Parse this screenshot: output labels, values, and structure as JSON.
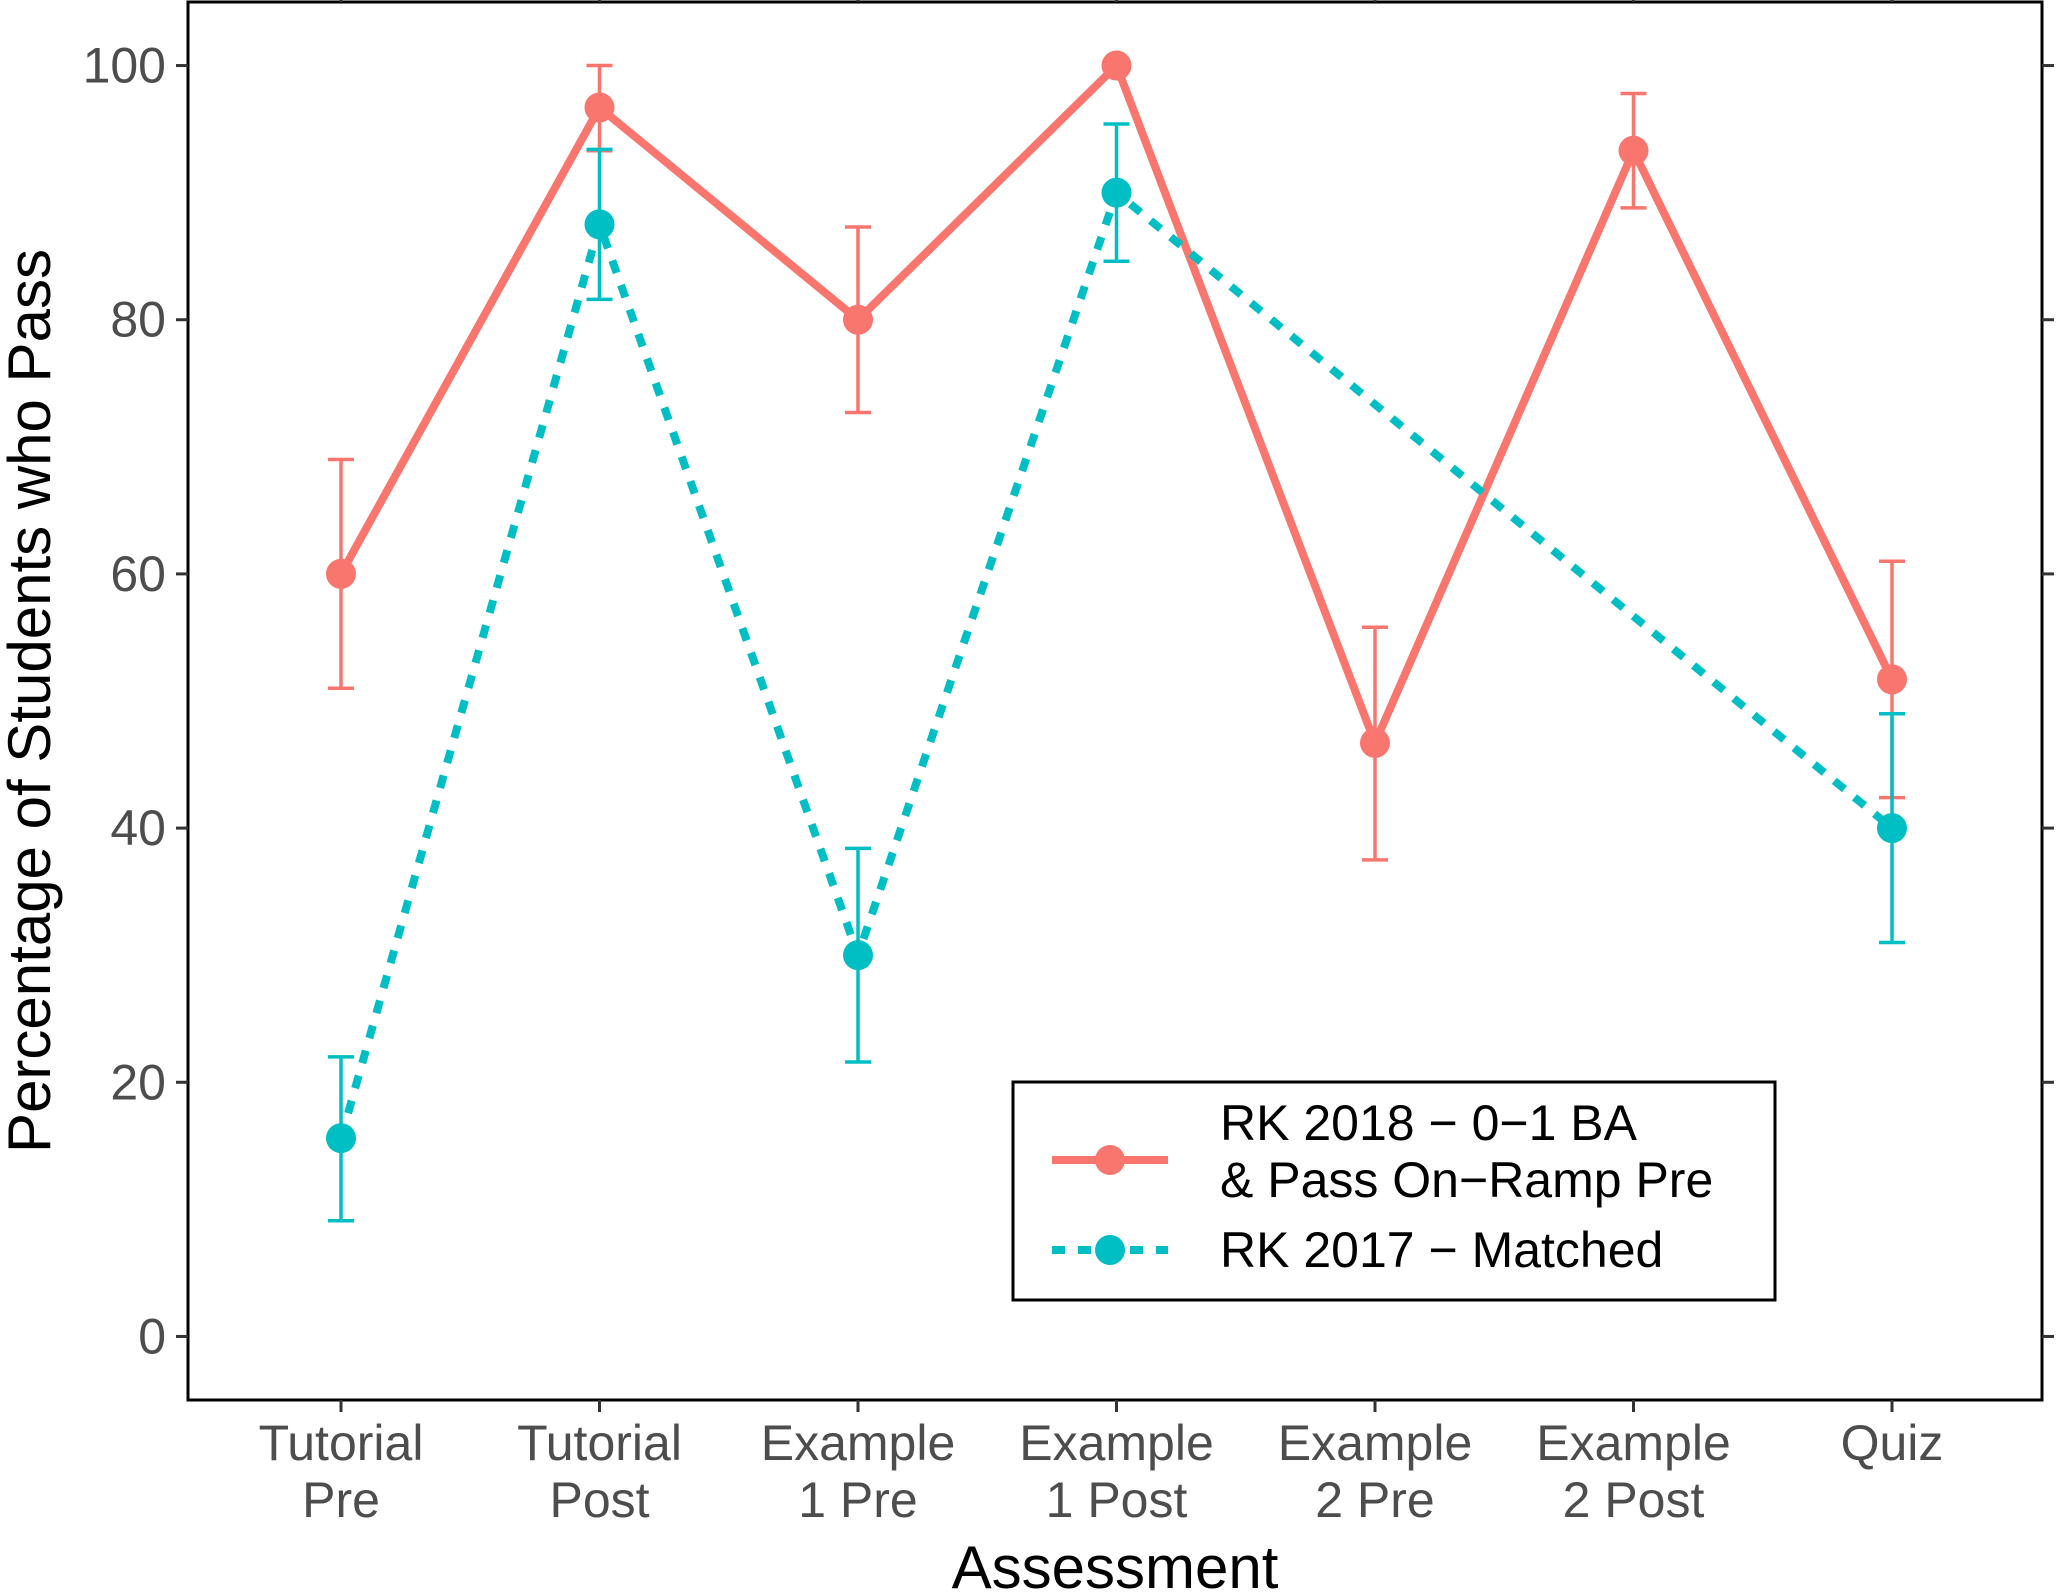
{
  "chart_data": {
    "type": "line",
    "title": "",
    "xlabel": "Assessment",
    "ylabel": "Percentage of Students who Pass",
    "categories": [
      [
        "Tutorial",
        "Pre"
      ],
      [
        "Tutorial",
        "Post"
      ],
      [
        "Example",
        "1 Pre"
      ],
      [
        "Example",
        "1 Post"
      ],
      [
        "Example",
        "2 Pre"
      ],
      [
        "Example",
        "2 Post"
      ],
      [
        "Quiz"
      ]
    ],
    "ylim": [
      -5,
      105
    ],
    "yticks": [
      0,
      20,
      40,
      60,
      80,
      100
    ],
    "grid": false,
    "legend_position": "bottom-right",
    "series": [
      {
        "name": "RK 2018 − 0−1 BA\n& Pass On−Ramp Pre",
        "color": "#F8766D",
        "line_style": "solid",
        "points": [
          {
            "x": 1,
            "y": 60.0,
            "lo": 51.0,
            "hi": 69.0
          },
          {
            "x": 2,
            "y": 96.7,
            "lo": 93.3,
            "hi": 100.0
          },
          {
            "x": 3,
            "y": 80.0,
            "lo": 72.7,
            "hi": 87.3
          },
          {
            "x": 4,
            "y": 100.0,
            "lo": 100.0,
            "hi": 100.0
          },
          {
            "x": 5,
            "y": 46.7,
            "lo": 37.5,
            "hi": 55.8
          },
          {
            "x": 6,
            "y": 93.3,
            "lo": 88.8,
            "hi": 97.8
          },
          {
            "x": 7,
            "y": 51.7,
            "lo": 42.4,
            "hi": 61.0
          }
        ]
      },
      {
        "name": "RK 2017 − Matched",
        "color": "#00BFC4",
        "line_style": "dashed",
        "points": [
          {
            "x": 1,
            "y": 15.6,
            "lo": 9.1,
            "hi": 22.0
          },
          {
            "x": 2,
            "y": 87.5,
            "lo": 81.6,
            "hi": 93.4
          },
          {
            "x": 3,
            "y": 30.0,
            "lo": 21.6,
            "hi": 38.4
          },
          {
            "x": 4,
            "y": 90.0,
            "lo": 84.6,
            "hi": 95.4
          },
          {
            "x": 7,
            "y": 40.0,
            "lo": 31.0,
            "hi": 49.0
          }
        ]
      }
    ]
  }
}
